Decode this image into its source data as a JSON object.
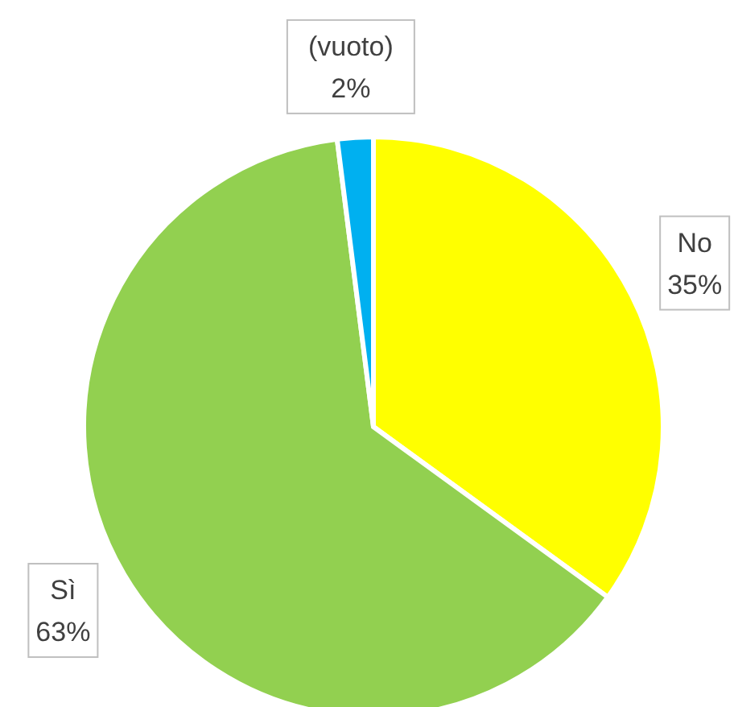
{
  "chart_data": {
    "type": "pie",
    "categories": [
      "No",
      "Sì",
      "(vuoto)"
    ],
    "values": [
      35,
      63,
      2
    ],
    "colors": [
      "#ffff00",
      "#92d050",
      "#00b0f0"
    ],
    "value_labels": [
      "35%",
      "63%",
      "2%"
    ],
    "legend": false
  }
}
